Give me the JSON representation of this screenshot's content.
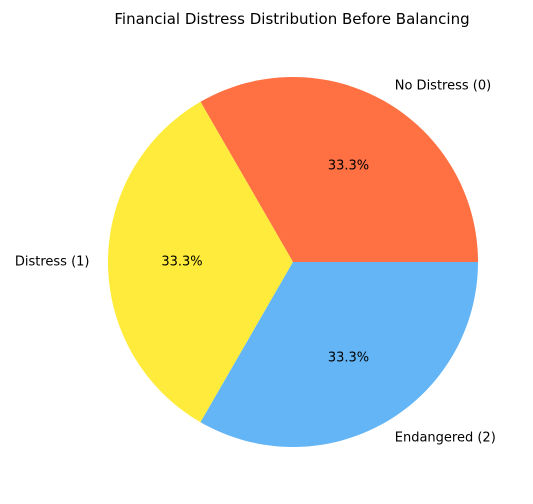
{
  "chart_data": {
    "type": "pie",
    "title": "Financial Distress Distribution Before Balancing",
    "slices": [
      {
        "label": "No Distress (0)",
        "value": 33.3,
        "pct_label": "33.3%",
        "color": "#FF7043"
      },
      {
        "label": "Distress (1)",
        "value": 33.3,
        "pct_label": "33.3%",
        "color": "#FFEB3B"
      },
      {
        "label": "Endangered (2)",
        "value": 33.3,
        "pct_label": "33.3%",
        "color": "#64B5F6"
      }
    ],
    "start_angle_deg": 0,
    "direction": "counterclockwise"
  }
}
